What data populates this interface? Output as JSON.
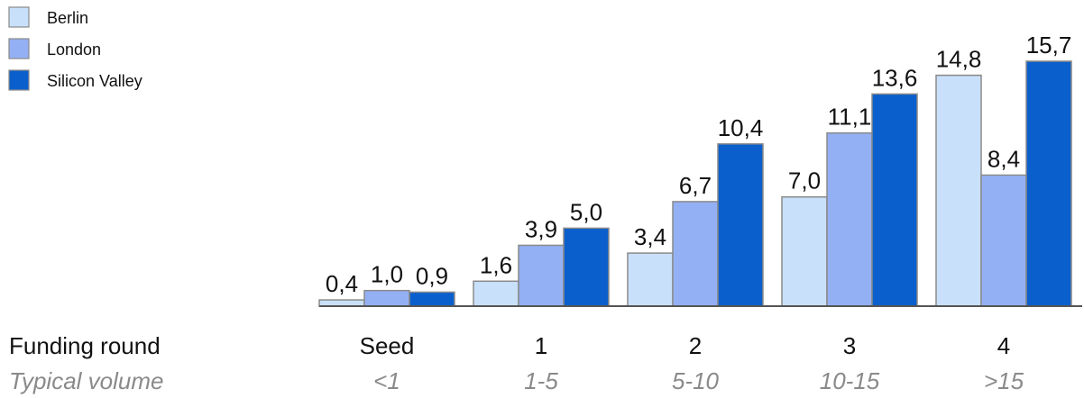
{
  "chart_data": {
    "type": "bar",
    "categories": [
      "Seed",
      "1",
      "2",
      "3",
      "4"
    ],
    "volumes": [
      "<1",
      "1-5",
      "5-10",
      "10-15",
      ">15"
    ],
    "row_titles": {
      "categories": "Funding round",
      "volumes": "Typical volume"
    },
    "series": [
      {
        "name": "Berlin",
        "color": "#c9e0fa",
        "values": [
          0.4,
          1.6,
          3.4,
          7.0,
          14.8
        ],
        "labels": [
          "0,4",
          "1,6",
          "3,4",
          "7,0",
          "14,8"
        ]
      },
      {
        "name": "London",
        "color": "#94b0f5",
        "values": [
          1.0,
          3.9,
          6.7,
          11.1,
          8.4
        ],
        "labels": [
          "1,0",
          "3,9",
          "6,7",
          "11,1",
          "8,4"
        ]
      },
      {
        "name": "Silicon Valley",
        "color": "#0a5fcc",
        "values": [
          0.9,
          5.0,
          10.4,
          13.6,
          15.7
        ],
        "labels": [
          "0,9",
          "5,0",
          "10,4",
          "13,6",
          "15,7"
        ]
      }
    ],
    "ylim": [
      0,
      15.7
    ],
    "grid": false,
    "legend_position": "top-left",
    "title": "",
    "xlabel": "",
    "ylabel": ""
  }
}
